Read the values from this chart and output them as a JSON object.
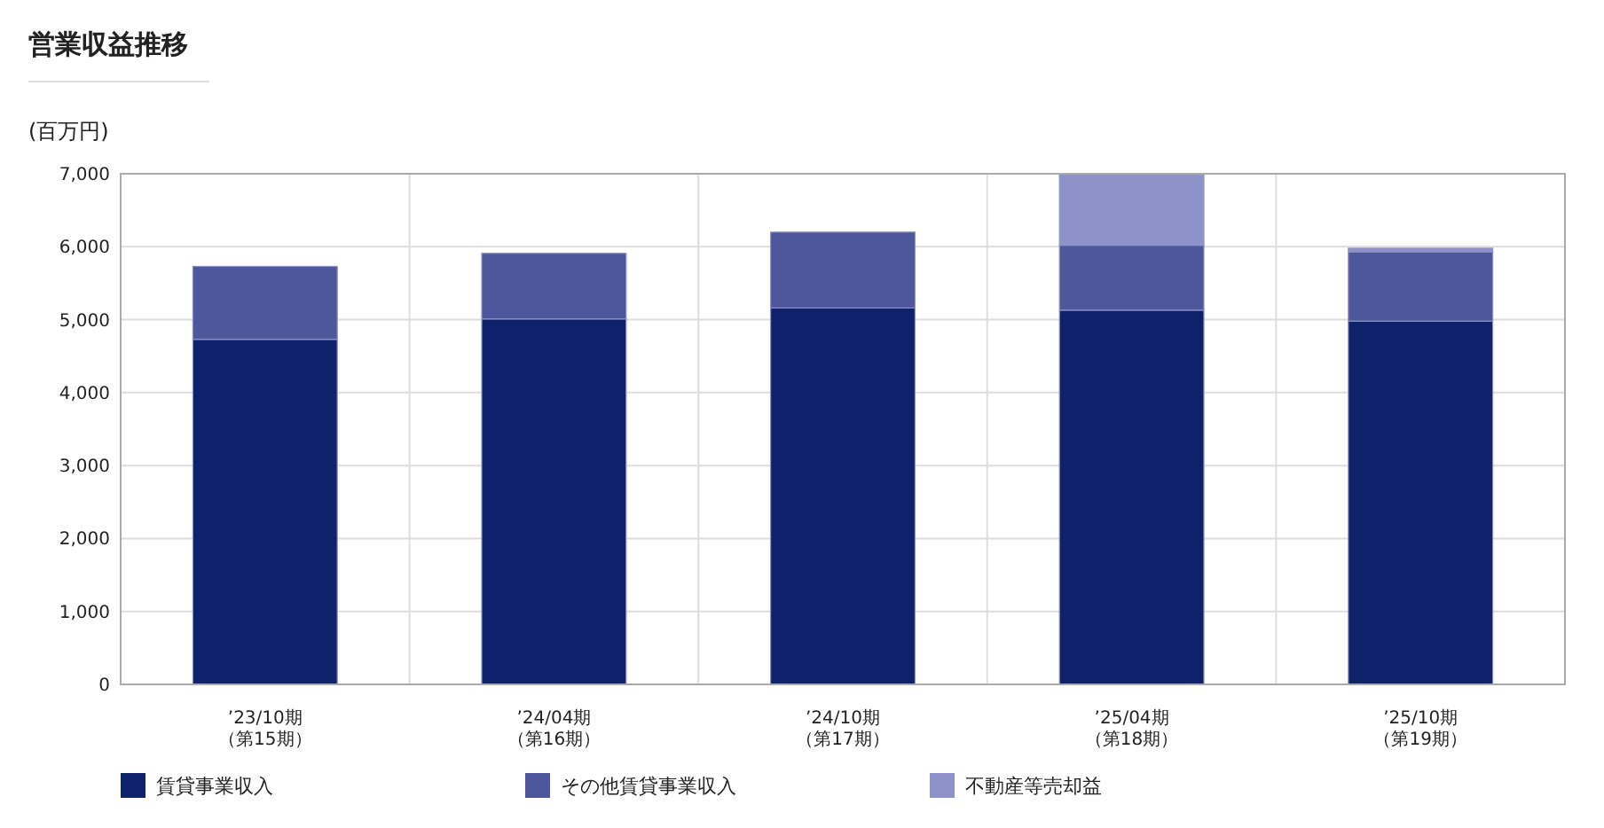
{
  "chart_data": {
    "type": "bar",
    "title": "営業収益推移",
    "ylabel": "(百万円)",
    "stacked": true,
    "categories": [
      "’23/10期（第15期）",
      "’24/04期（第16期）",
      "’24/10期（第17期）",
      "’25/04期（第18期）",
      "’25/10期（第19期）"
    ],
    "series": [
      {
        "name": "賃貸事業収入",
        "color": "#10216b",
        "values": [
          4730,
          5010,
          5160,
          5130,
          4980
        ]
      },
      {
        "name": "その他賃貸事業収入",
        "color": "#4e569c",
        "values": [
          1000,
          900,
          1040,
          890,
          950
        ]
      },
      {
        "name": "不動産等売却益",
        "color": "#8d93c8",
        "values": [
          null,
          null,
          null,
          980,
          50
        ]
      }
    ],
    "ylim": [
      0,
      7000
    ],
    "yticks": [
      {
        "value": 0,
        "label": "0"
      },
      {
        "value": 1000,
        "label": "1,000"
      },
      {
        "value": 2000,
        "label": "2,000"
      },
      {
        "value": 3000,
        "label": "3,000"
      },
      {
        "value": 4000,
        "label": "4,000"
      },
      {
        "value": 5000,
        "label": "5,000"
      },
      {
        "value": 6000,
        "label": "6,000"
      },
      {
        "value": 7000,
        "label": "7,000"
      }
    ],
    "grid": true,
    "legend": "bottom"
  }
}
